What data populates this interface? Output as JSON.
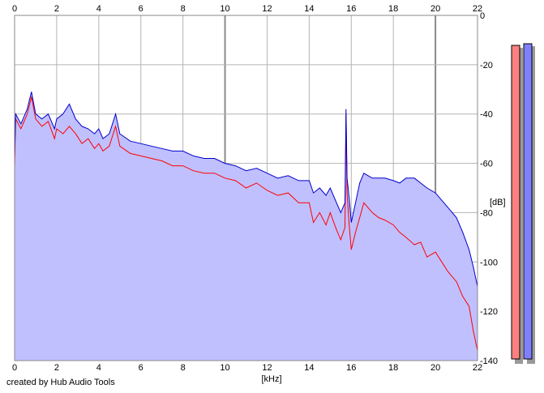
{
  "footer_text": "created by Hub Audio Tools",
  "chart_data": {
    "type": "line",
    "title": "",
    "xlabel": "[kHz]",
    "ylabel": "[dB]",
    "xlim": [
      0,
      22
    ],
    "ylim": [
      -140,
      0
    ],
    "x_ticks": [
      0,
      2,
      4,
      6,
      8,
      10,
      12,
      14,
      16,
      18,
      20,
      22
    ],
    "y_ticks": [
      0,
      -20,
      -40,
      -60,
      -80,
      -100,
      -120,
      -140
    ],
    "grid": true,
    "fill_color": "#c0c0ff",
    "series": [
      {
        "color": "#ff0000",
        "x": [
          0,
          0.05,
          0.3,
          0.6,
          0.8,
          1.0,
          1.3,
          1.6,
          1.9,
          2.0,
          2.3,
          2.6,
          2.9,
          3.2,
          3.5,
          3.8,
          4.0,
          4.2,
          4.5,
          4.8,
          5.0,
          5.5,
          6.0,
          6.5,
          7.0,
          7.5,
          8.0,
          8.5,
          9.0,
          9.5,
          10.0,
          10.5,
          11.0,
          11.5,
          12.0,
          12.5,
          13.0,
          13.5,
          14.0,
          14.2,
          14.5,
          14.8,
          15.0,
          15.3,
          15.5,
          15.7,
          15.75,
          15.8,
          15.9,
          16.0,
          16.2,
          16.4,
          16.6,
          16.8,
          17.0,
          17.3,
          17.6,
          18.0,
          18.3,
          18.6,
          19.0,
          19.3,
          19.6,
          20.0,
          20.3,
          20.6,
          21.0,
          21.3,
          21.6,
          21.8,
          22.0
        ],
        "values": [
          -62,
          -42,
          -46,
          -40,
          -33,
          -42,
          -45,
          -43,
          -50,
          -46,
          -48,
          -45,
          -48,
          -52,
          -50,
          -54,
          -52,
          -55,
          -53,
          -45,
          -53,
          -56,
          -57,
          -58,
          -59,
          -61,
          -61,
          -63,
          -64,
          -64,
          -66,
          -67,
          -70,
          -68,
          -71,
          -73,
          -72,
          -76,
          -76,
          -84,
          -80,
          -85,
          -80,
          -87,
          -91,
          -86,
          -40,
          -72,
          -85,
          -95,
          -88,
          -82,
          -76,
          -78,
          -80,
          -82,
          -83,
          -85,
          -88,
          -90,
          -93,
          -92,
          -98,
          -96,
          -100,
          -104,
          -108,
          -114,
          -118,
          -128,
          -136
        ]
      },
      {
        "color": "#0000cc",
        "x": [
          0,
          0.05,
          0.3,
          0.6,
          0.8,
          1.0,
          1.3,
          1.6,
          1.9,
          2.0,
          2.3,
          2.6,
          2.9,
          3.2,
          3.5,
          3.8,
          4.0,
          4.2,
          4.5,
          4.8,
          5.0,
          5.5,
          6.0,
          6.5,
          7.0,
          7.5,
          8.0,
          8.5,
          9.0,
          9.5,
          10.0,
          10.5,
          11.0,
          11.5,
          12.0,
          12.5,
          13.0,
          13.5,
          14.0,
          14.2,
          14.5,
          14.8,
          15.0,
          15.3,
          15.5,
          15.7,
          15.75,
          15.8,
          15.9,
          16.0,
          16.2,
          16.4,
          16.6,
          16.8,
          17.0,
          17.3,
          17.6,
          18.0,
          18.3,
          18.6,
          19.0,
          19.3,
          19.6,
          20.0,
          20.3,
          20.6,
          21.0,
          21.3,
          21.6,
          21.8,
          22.0
        ],
        "values": [
          -58,
          -40,
          -44,
          -38,
          -31,
          -40,
          -42,
          -40,
          -46,
          -42,
          -40,
          -36,
          -42,
          -45,
          -46,
          -48,
          -46,
          -50,
          -48,
          -40,
          -48,
          -51,
          -52,
          -53,
          -54,
          -55,
          -55,
          -57,
          -58,
          -58,
          -60,
          -61,
          -63,
          -62,
          -64,
          -66,
          -65,
          -67,
          -67,
          -72,
          -70,
          -73,
          -70,
          -76,
          -80,
          -76,
          -38,
          -66,
          -74,
          -84,
          -76,
          -68,
          -64,
          -65,
          -66,
          -66,
          -66,
          -67,
          -68,
          -66,
          -66,
          -68,
          -70,
          -72,
          -75,
          -78,
          -82,
          -88,
          -95,
          -102,
          -110
        ]
      }
    ]
  }
}
